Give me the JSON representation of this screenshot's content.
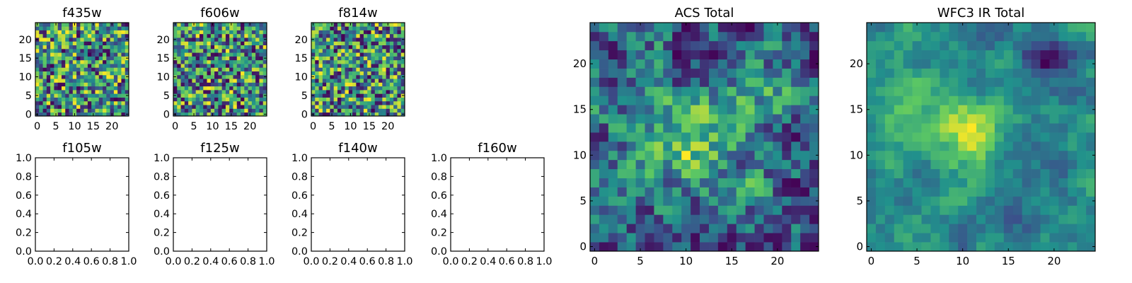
{
  "colormap": [
    "#440154",
    "#3b528b",
    "#21918c",
    "#5ec962",
    "#fde725"
  ],
  "chart_data": [
    {
      "name": "f435w",
      "type": "heatmap",
      "title": "f435w",
      "grid_size": 25,
      "xlim": [
        -0.5,
        24.5
      ],
      "ylim": [
        -0.5,
        24.5
      ],
      "xticks": [
        0,
        5,
        10,
        15,
        20
      ],
      "yticks": [
        0,
        5,
        10,
        15,
        20
      ],
      "seed": 11,
      "smooth": 0,
      "blobs": []
    },
    {
      "name": "f606w",
      "type": "heatmap",
      "title": "f606w",
      "grid_size": 25,
      "xlim": [
        -0.5,
        24.5
      ],
      "ylim": [
        -0.5,
        24.5
      ],
      "xticks": [
        0,
        5,
        10,
        15,
        20
      ],
      "yticks": [
        0,
        5,
        10,
        15,
        20
      ],
      "seed": 23,
      "smooth": 0,
      "blobs": []
    },
    {
      "name": "f814w",
      "type": "heatmap",
      "title": "f814w",
      "grid_size": 25,
      "xlim": [
        -0.5,
        24.5
      ],
      "ylim": [
        -0.5,
        24.5
      ],
      "xticks": [
        0,
        5,
        10,
        15,
        20
      ],
      "yticks": [
        0,
        5,
        10,
        15,
        20
      ],
      "seed": 37,
      "smooth": 0,
      "blobs": []
    },
    {
      "name": "f105w",
      "type": "empty",
      "title": "f105w",
      "xlim": [
        0,
        1
      ],
      "ylim": [
        0,
        1
      ],
      "xticks": [
        "0.0",
        "0.2",
        "0.4",
        "0.6",
        "0.8",
        "1.0"
      ],
      "yticks": [
        "0.0",
        "0.2",
        "0.4",
        "0.6",
        "0.8",
        "1.0"
      ]
    },
    {
      "name": "f125w",
      "type": "empty",
      "title": "f125w",
      "xlim": [
        0,
        1
      ],
      "ylim": [
        0,
        1
      ],
      "xticks": [
        "0.0",
        "0.2",
        "0.4",
        "0.6",
        "0.8",
        "1.0"
      ],
      "yticks": [
        "0.0",
        "0.2",
        "0.4",
        "0.6",
        "0.8",
        "1.0"
      ]
    },
    {
      "name": "f140w",
      "type": "empty",
      "title": "f140w",
      "xlim": [
        0,
        1
      ],
      "ylim": [
        0,
        1
      ],
      "xticks": [
        "0.0",
        "0.2",
        "0.4",
        "0.6",
        "0.8",
        "1.0"
      ],
      "yticks": [
        "0.0",
        "0.2",
        "0.4",
        "0.6",
        "0.8",
        "1.0"
      ]
    },
    {
      "name": "f160w",
      "type": "empty",
      "title": "f160w",
      "xlim": [
        0,
        1
      ],
      "ylim": [
        0,
        1
      ],
      "xticks": [
        "0.0",
        "0.2",
        "0.4",
        "0.6",
        "0.8",
        "1.0"
      ],
      "yticks": [
        "0.0",
        "0.2",
        "0.4",
        "0.6",
        "0.8",
        "1.0"
      ]
    },
    {
      "name": "acs-total",
      "type": "heatmap",
      "title": "ACS Total",
      "grid_size": 25,
      "xlim": [
        -0.5,
        24.5
      ],
      "ylim": [
        -0.5,
        24.5
      ],
      "xticks": [
        0,
        5,
        10,
        15,
        20
      ],
      "yticks": [
        0,
        5,
        10,
        15,
        20
      ],
      "seed": 53,
      "smooth": 1,
      "blobs": [
        [
          9,
          11,
          3,
          0.25
        ],
        [
          13,
          12,
          4,
          0.2
        ],
        [
          20,
          17,
          3,
          0.2
        ]
      ]
    },
    {
      "name": "wfc3-ir-total",
      "type": "heatmap",
      "title": "WFC3 IR Total",
      "grid_size": 25,
      "xlim": [
        -0.5,
        24.5
      ],
      "ylim": [
        -0.5,
        24.5
      ],
      "xticks": [
        0,
        5,
        10,
        15,
        20
      ],
      "yticks": [
        0,
        5,
        10,
        15,
        20
      ],
      "seed": 71,
      "smooth": 2,
      "blobs": [
        [
          11,
          12,
          3,
          0.55
        ],
        [
          3,
          15,
          3,
          0.2
        ],
        [
          19,
          20,
          -2,
          -0.6
        ],
        [
          14,
          7,
          3,
          -0.2
        ]
      ]
    }
  ]
}
